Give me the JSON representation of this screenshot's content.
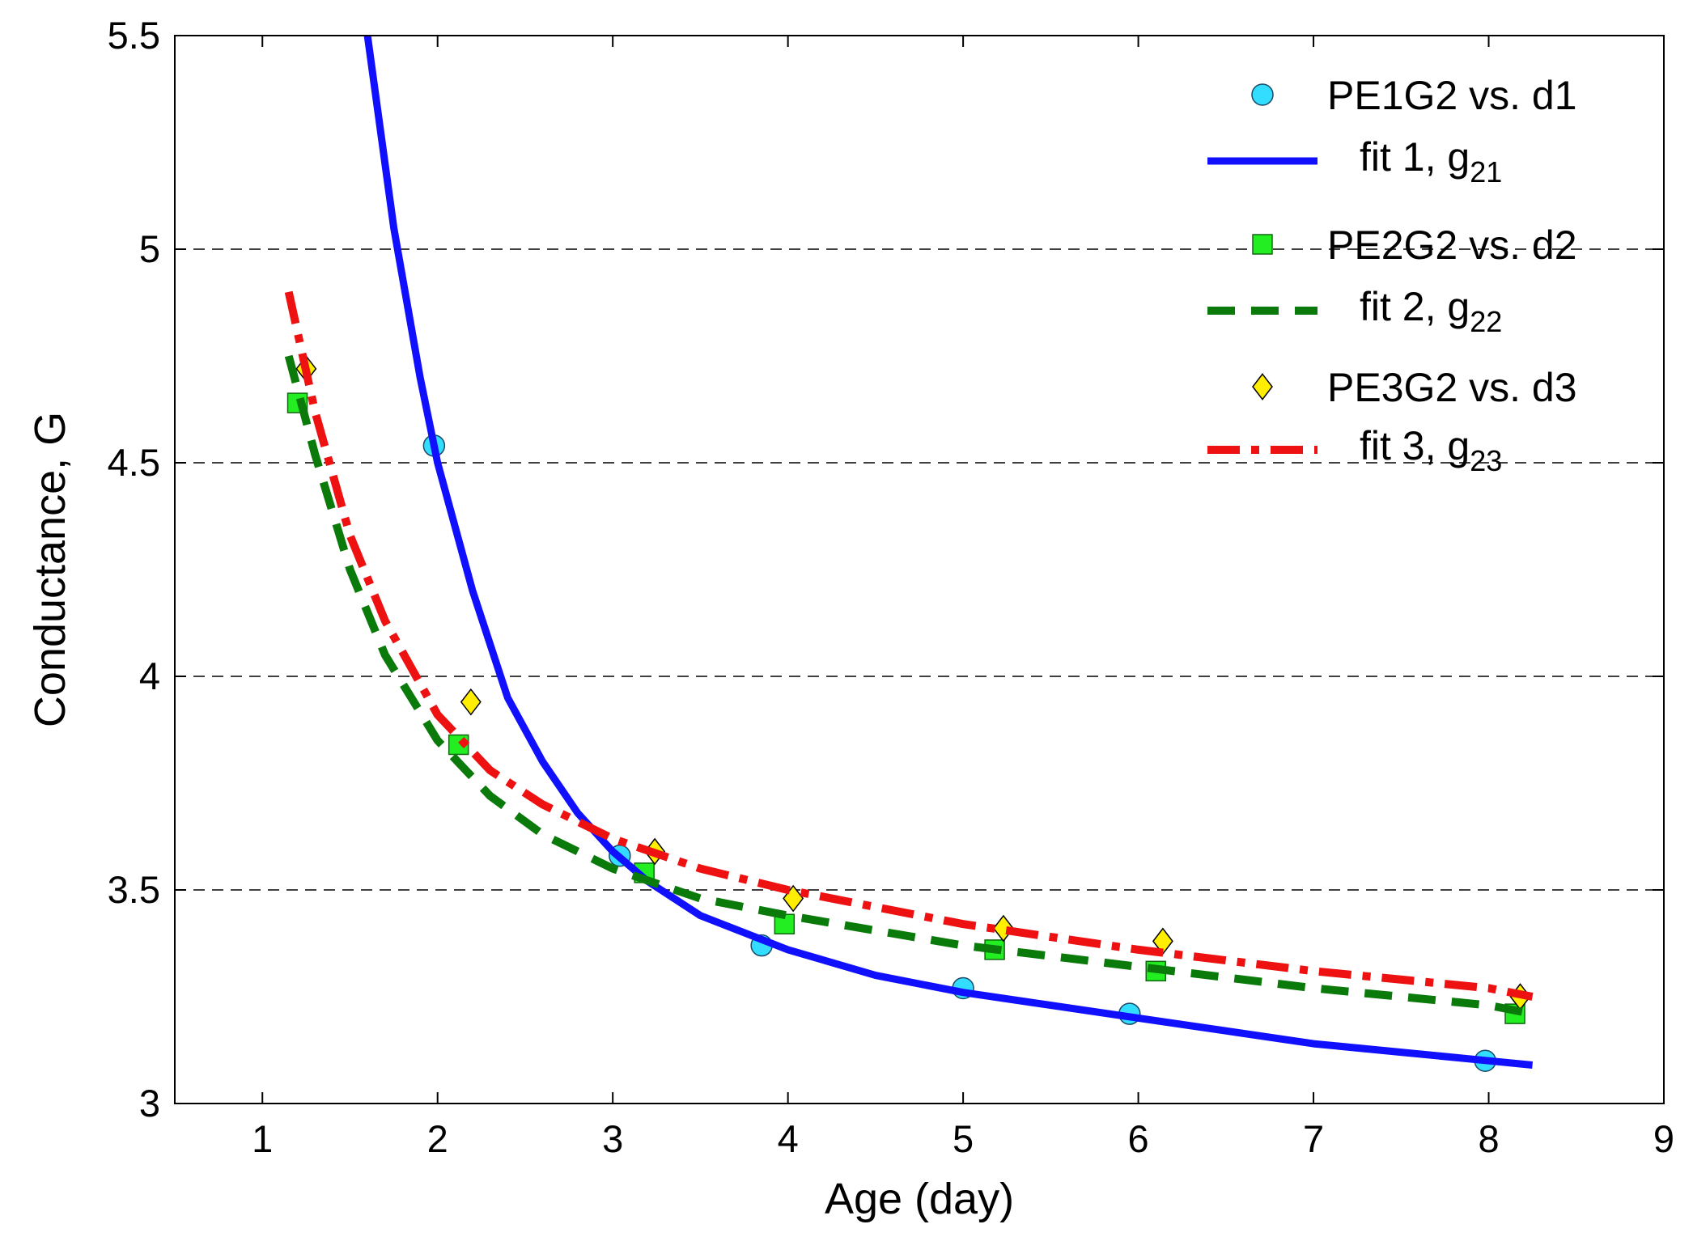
{
  "chart_data": {
    "type": "line",
    "title": "",
    "xlabel": "Age (day)",
    "ylabel": "Conductance, G",
    "xlim": [
      0.5,
      9
    ],
    "ylim": [
      3,
      5.5
    ],
    "xticks": [
      "1",
      "2",
      "3",
      "4",
      "5",
      "6",
      "7",
      "8",
      "9"
    ],
    "yticks": [
      "3",
      "3.5",
      "4",
      "4.5",
      "5",
      "5.5"
    ],
    "grid": "dashed horizontal lines at y ticks",
    "legend_position": "top-right",
    "series": [
      {
        "name": "PE1G2 vs. d1",
        "kind": "markers",
        "marker": "circle",
        "color": "#33ddff",
        "x": [
          1.98,
          3.04,
          3.85,
          5.0,
          5.95,
          7.98
        ],
        "y": [
          4.54,
          3.58,
          3.37,
          3.27,
          3.21,
          3.1
        ]
      },
      {
        "name": "fit 1, g",
        "subscript": "21",
        "kind": "line",
        "style": "solid",
        "color": "#1010ff",
        "x": [
          1.6,
          1.75,
          1.9,
          2.0,
          2.2,
          2.4,
          2.6,
          2.8,
          3.0,
          3.2,
          3.5,
          4.0,
          4.5,
          5.0,
          5.5,
          6.0,
          6.5,
          7.0,
          7.5,
          8.0,
          8.25
        ],
        "y": [
          5.5,
          5.05,
          4.7,
          4.5,
          4.2,
          3.95,
          3.8,
          3.68,
          3.59,
          3.52,
          3.44,
          3.36,
          3.3,
          3.26,
          3.23,
          3.2,
          3.17,
          3.14,
          3.12,
          3.1,
          3.09
        ]
      },
      {
        "name": "PE2G2 vs. d2",
        "kind": "markers",
        "marker": "square",
        "color": "#22ee22",
        "x": [
          1.2,
          2.12,
          3.18,
          3.98,
          5.18,
          6.1,
          8.15
        ],
        "y": [
          4.64,
          3.84,
          3.54,
          3.42,
          3.36,
          3.31,
          3.21
        ]
      },
      {
        "name": "fit 2, g",
        "subscript": "22",
        "kind": "line",
        "style": "dashed",
        "color": "#0a7a0a",
        "x": [
          1.15,
          1.3,
          1.5,
          1.7,
          2.0,
          2.3,
          2.6,
          3.0,
          3.5,
          4.0,
          5.0,
          6.0,
          7.0,
          8.0,
          8.25
        ],
        "y": [
          4.75,
          4.52,
          4.25,
          4.05,
          3.85,
          3.72,
          3.63,
          3.55,
          3.48,
          3.44,
          3.37,
          3.32,
          3.27,
          3.23,
          3.21
        ]
      },
      {
        "name": "PE3G2 vs. d3",
        "kind": "markers",
        "marker": "diamond",
        "color": "#ffee00",
        "x": [
          1.25,
          2.19,
          3.24,
          4.03,
          5.23,
          6.14,
          8.18
        ],
        "y": [
          4.72,
          3.94,
          3.59,
          3.48,
          3.41,
          3.38,
          3.25
        ]
      },
      {
        "name": "fit 3, g",
        "subscript": "23",
        "kind": "line",
        "style": "dashdot",
        "color": "#ee1111",
        "x": [
          1.15,
          1.3,
          1.5,
          1.7,
          2.0,
          2.3,
          2.6,
          3.0,
          3.5,
          4.0,
          5.0,
          6.0,
          7.0,
          8.0,
          8.25
        ],
        "y": [
          4.9,
          4.62,
          4.33,
          4.13,
          3.91,
          3.78,
          3.7,
          3.62,
          3.55,
          3.5,
          3.42,
          3.36,
          3.31,
          3.27,
          3.25
        ]
      }
    ]
  }
}
